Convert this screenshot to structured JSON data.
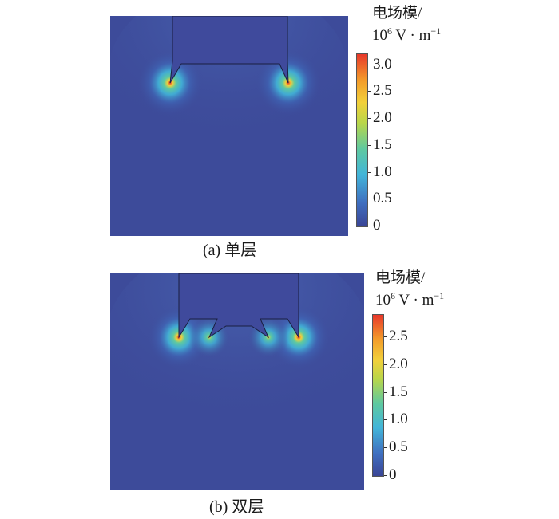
{
  "panels": [
    {
      "caption": "(a) 单层",
      "colorbar_title_line1": "电场模/",
      "colorbar_title_base": "10",
      "colorbar_title_exp": "6",
      "colorbar_title_rest": " V · m",
      "colorbar_title_exp2": "−1",
      "colorbar_ticks": [
        "3.0",
        "2.5",
        "2.0",
        "1.5",
        "1.0",
        "0.5",
        "0"
      ],
      "colorbar_range": [
        0,
        3.2
      ]
    },
    {
      "caption": "(b) 双层",
      "colorbar_title_line1": "电场模/",
      "colorbar_title_base": "10",
      "colorbar_title_exp": "6",
      "colorbar_title_rest": " V · m",
      "colorbar_title_exp2": "−1",
      "colorbar_ticks": [
        "2.5",
        "2.0",
        "1.5",
        "1.0",
        "0.5",
        "0"
      ],
      "colorbar_range": [
        0,
        2.9
      ]
    }
  ],
  "colors": {
    "background_field": "#3d4b9a",
    "electrode": "#3f4a9c",
    "colormap": [
      "#3a4596",
      "#3f6fc0",
      "#42b5d9",
      "#5fc9a0",
      "#b8d64a",
      "#f2d03a",
      "#f39b2a",
      "#e8382a"
    ]
  }
}
